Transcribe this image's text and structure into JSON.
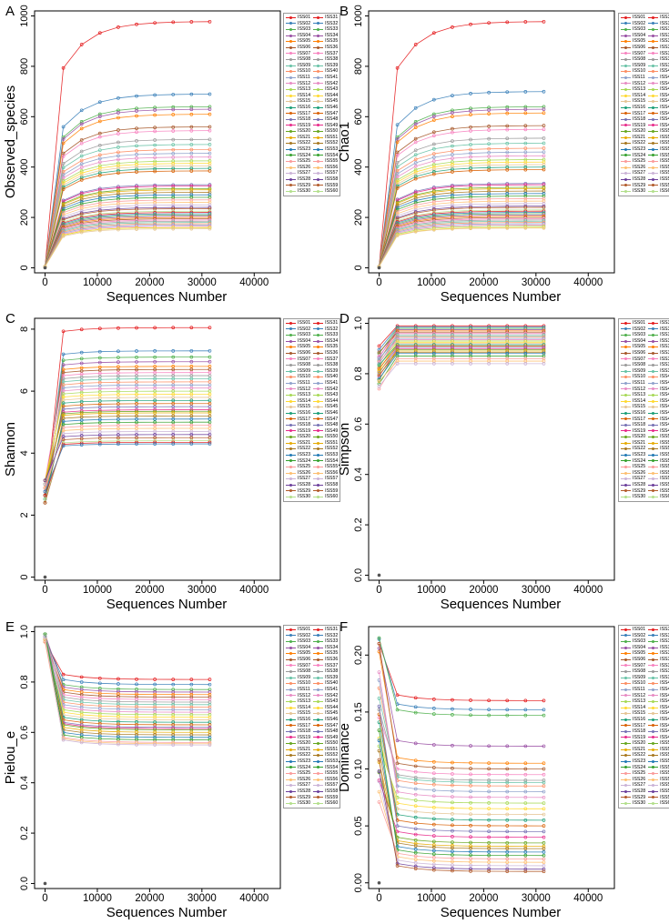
{
  "legend_labels": [
    "ISS01",
    "ISS02",
    "ISS03",
    "ISS04",
    "ISS05",
    "ISS06",
    "ISS07",
    "ISS08",
    "ISS09",
    "ISS10",
    "ISS11",
    "ISS12",
    "ISS13",
    "ISS14",
    "ISS15",
    "ISS16",
    "ISS17",
    "ISS18",
    "ISS19",
    "ISS20",
    "ISS21",
    "ISS22",
    "ISS23",
    "ISS24",
    "ISS25",
    "ISS26",
    "ISS27",
    "ISS28",
    "ISS29",
    "ISS30",
    "ISS31",
    "ISS32",
    "ISS33",
    "ISS34",
    "ISS35",
    "ISS36",
    "ISS37",
    "ISS38",
    "ISS39",
    "ISS40",
    "ISS41",
    "ISS42",
    "ISS43",
    "ISS44",
    "ISS45",
    "ISS46",
    "ISS47",
    "ISS48",
    "ISS49",
    "ISS50",
    "ISS51",
    "ISS52",
    "ISS53",
    "ISS54",
    "ISS55",
    "ISS56",
    "ISS57",
    "ISS58",
    "ISS59",
    "ISS60"
  ],
  "series_colors": [
    "#e41a1c",
    "#377eb8",
    "#4daf4a",
    "#984ea3",
    "#ff7f00",
    "#a65628",
    "#f781bf",
    "#999999",
    "#66c2a5",
    "#fc8d62",
    "#8da0cb",
    "#e78ac3",
    "#a6d854",
    "#ffd92f",
    "#e5c494",
    "#1b9e77",
    "#d95f02",
    "#7570b3",
    "#e7298a",
    "#66a61e",
    "#e6ab02",
    "#a6761d",
    "#1f78b4",
    "#33a02c",
    "#fb9a99",
    "#fdbf6f",
    "#cab2d6",
    "#6a3d9a",
    "#b15928",
    "#b2df8a"
  ],
  "chart_data": [
    {
      "panel": "A",
      "type": "line",
      "xlabel": "Sequences Number",
      "ylabel": "Observed_species",
      "x": [
        0,
        3500,
        7000,
        10500,
        14000,
        17500,
        21000,
        24500,
        28000,
        31500
      ],
      "xlim": [
        -2000,
        45000
      ],
      "ylim": [
        -20,
        1020
      ],
      "xticks": [
        0,
        10000,
        20000,
        30000,
        40000
      ],
      "xtick_labels": [
        "0",
        "10000",
        "20000",
        "30000",
        "40000"
      ],
      "yticks": [
        0,
        200,
        400,
        600,
        800,
        1000
      ],
      "ytick_labels": [
        "0",
        "200",
        "400",
        "600",
        "800",
        "1000"
      ],
      "finals": [
        978,
        690,
        640,
        630,
        610,
        560,
        545,
        510,
        490,
        470,
        455,
        440,
        425,
        415,
        405,
        395,
        385,
        330,
        325,
        315,
        310,
        300,
        290,
        280,
        270,
        260,
        250,
        240,
        235,
        225,
        220,
        215,
        210,
        205,
        200,
        195,
        190,
        185,
        180,
        175,
        170,
        165,
        160,
        160,
        155
      ]
    },
    {
      "panel": "B",
      "type": "line",
      "xlabel": "Sequences Number",
      "ylabel": "Chao1",
      "x": [
        0,
        3500,
        7000,
        10500,
        14000,
        17500,
        21000,
        24500,
        28000,
        31500
      ],
      "xlim": [
        -2000,
        45000
      ],
      "ylim": [
        -20,
        1020
      ],
      "xticks": [
        0,
        10000,
        20000,
        30000,
        40000
      ],
      "xtick_labels": [
        "0",
        "10000",
        "20000",
        "30000",
        "40000"
      ],
      "yticks": [
        0,
        200,
        400,
        600,
        800,
        1000
      ],
      "ytick_labels": [
        "0",
        "200",
        "400",
        "600",
        "800",
        "1000"
      ],
      "finals": [
        978,
        700,
        640,
        630,
        615,
        565,
        550,
        515,
        495,
        475,
        460,
        445,
        430,
        420,
        410,
        400,
        390,
        335,
        330,
        320,
        315,
        305,
        295,
        285,
        275,
        265,
        255,
        245,
        240,
        230,
        225,
        220,
        215,
        210,
        205,
        200,
        195,
        190,
        185,
        180,
        175,
        170,
        165,
        160,
        158
      ]
    },
    {
      "panel": "C",
      "type": "line",
      "xlabel": "Sequences Number",
      "ylabel": "Shannon",
      "x": [
        0,
        3500,
        7000,
        10500,
        14000,
        17500,
        21000,
        24500,
        28000,
        31500
      ],
      "xlim": [
        -2000,
        45000
      ],
      "ylim": [
        -0.1,
        8.35
      ],
      "xticks": [
        0,
        10000,
        20000,
        30000,
        40000
      ],
      "xtick_labels": [
        "0",
        "10000",
        "20000",
        "30000",
        "40000"
      ],
      "yticks": [
        0,
        2,
        4,
        6,
        8
      ],
      "ytick_labels": [
        "0",
        "2",
        "4",
        "6",
        "8"
      ],
      "finals": [
        8.05,
        7.3,
        7.1,
        6.95,
        6.8,
        6.7,
        6.6,
        6.5,
        6.4,
        6.3,
        6.2,
        6.1,
        6.0,
        5.9,
        5.8,
        5.7,
        5.6,
        5.5,
        5.4,
        5.35,
        5.3,
        5.2,
        5.1,
        5.0,
        4.9,
        4.8,
        4.7,
        4.6,
        4.5,
        4.4,
        4.35,
        4.3
      ]
    },
    {
      "panel": "D",
      "type": "line",
      "xlabel": "Sequences Number",
      "ylabel": "Simpson",
      "x": [
        0,
        3500,
        7000,
        10500,
        14000,
        17500,
        21000,
        24500,
        28000,
        31500
      ],
      "xlim": [
        -2000,
        45000
      ],
      "ylim": [
        -0.02,
        1.02
      ],
      "xticks": [
        0,
        10000,
        20000,
        30000,
        40000
      ],
      "xtick_labels": [
        "0",
        "10000",
        "20000",
        "30000",
        "40000"
      ],
      "yticks": [
        0,
        0.2,
        0.4,
        0.6,
        0.8,
        1.0
      ],
      "ytick_labels": [
        "0.0",
        "0.2",
        "0.4",
        "0.6",
        "0.8",
        "1.0"
      ],
      "finals": [
        0.99,
        0.985,
        0.98,
        0.975,
        0.97,
        0.965,
        0.96,
        0.955,
        0.95,
        0.945,
        0.94,
        0.935,
        0.93,
        0.925,
        0.92,
        0.915,
        0.91,
        0.905,
        0.9,
        0.895,
        0.89,
        0.885,
        0.88,
        0.87,
        0.86,
        0.85,
        0.84
      ]
    },
    {
      "panel": "E",
      "type": "line",
      "xlabel": "Sequences Number",
      "ylabel": "Pielou_e",
      "x": [
        0,
        3500,
        7000,
        10500,
        14000,
        17500,
        21000,
        24500,
        28000,
        31500
      ],
      "xlim": [
        -2000,
        45000
      ],
      "ylim": [
        -0.02,
        1.02
      ],
      "xticks": [
        0,
        10000,
        20000,
        30000,
        40000
      ],
      "xtick_labels": [
        "0",
        "10000",
        "20000",
        "30000",
        "40000"
      ],
      "yticks": [
        0,
        0.2,
        0.4,
        0.6,
        0.8,
        1.0
      ],
      "ytick_labels": [
        "0.0",
        "0.2",
        "0.4",
        "0.6",
        "0.8",
        "1.0"
      ],
      "finals": [
        0.81,
        0.79,
        0.77,
        0.76,
        0.75,
        0.74,
        0.73,
        0.72,
        0.71,
        0.7,
        0.69,
        0.68,
        0.67,
        0.66,
        0.65,
        0.64,
        0.63,
        0.62,
        0.615,
        0.61,
        0.6,
        0.59,
        0.58,
        0.57,
        0.56,
        0.555,
        0.55
      ]
    },
    {
      "panel": "F",
      "type": "line",
      "xlabel": "Sequences Number",
      "ylabel": "Dominance",
      "x": [
        0,
        3500,
        7000,
        10500,
        14000,
        17500,
        21000,
        24500,
        28000,
        31500
      ],
      "xlim": [
        -2000,
        45000
      ],
      "ylim": [
        -0.005,
        0.225
      ],
      "xticks": [
        0,
        10000,
        20000,
        30000,
        40000
      ],
      "xtick_labels": [
        "0",
        "10000",
        "20000",
        "30000",
        "40000"
      ],
      "yticks": [
        0,
        0.05,
        0.1,
        0.15,
        0.2
      ],
      "ytick_labels": [
        "0.00",
        "0.05",
        "0.10",
        "0.15",
        "0.20"
      ],
      "finals": [
        0.16,
        0.152,
        0.147,
        0.12,
        0.105,
        0.1,
        0.095,
        0.09,
        0.088,
        0.085,
        0.08,
        0.075,
        0.07,
        0.065,
        0.06,
        0.055,
        0.05,
        0.045,
        0.04,
        0.035,
        0.032,
        0.03,
        0.027,
        0.024,
        0.021,
        0.018,
        0.015,
        0.012,
        0.01
      ]
    }
  ]
}
